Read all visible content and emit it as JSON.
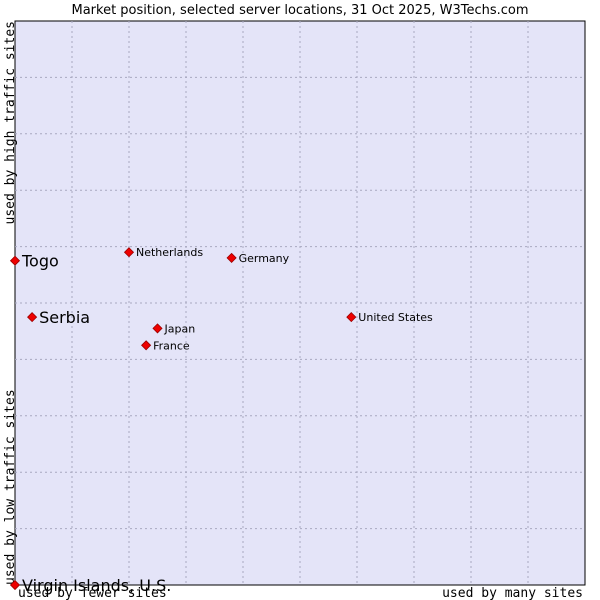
{
  "chart_data": {
    "type": "scatter",
    "title": "Market position, selected server locations, 31 Oct 2025, W3Techs.com",
    "x_axis": {
      "low_label": "used by fewer sites",
      "high_label": "used by many sites",
      "range": [
        0,
        10
      ]
    },
    "y_axis": {
      "low_label": "used by low traffic sites",
      "high_label": "used by high traffic sites",
      "range": [
        0,
        10
      ]
    },
    "grid": true,
    "points": [
      {
        "name": "Netherlands",
        "x": 2.0,
        "y": 5.9,
        "size": "small"
      },
      {
        "name": "Germany",
        "x": 3.8,
        "y": 5.8,
        "size": "small"
      },
      {
        "name": "Togo",
        "x": 0.0,
        "y": 5.75,
        "size": "large"
      },
      {
        "name": "Serbia",
        "x": 0.3,
        "y": 4.75,
        "size": "large"
      },
      {
        "name": "United States",
        "x": 5.9,
        "y": 4.75,
        "size": "small"
      },
      {
        "name": "Japan",
        "x": 2.5,
        "y": 4.55,
        "size": "small"
      },
      {
        "name": "France",
        "x": 2.3,
        "y": 4.25,
        "size": "small"
      },
      {
        "name": "Virgin Islands, U.S.",
        "x": 0.0,
        "y": 0.0,
        "size": "large"
      }
    ]
  }
}
